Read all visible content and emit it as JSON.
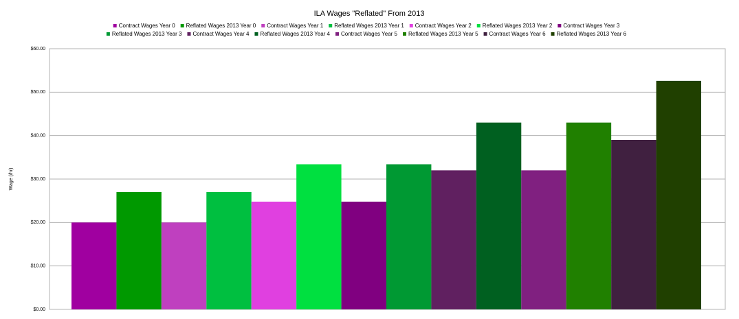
{
  "chart_data": {
    "type": "bar",
    "title": "ILA Wages \"Reflated\" From 2013",
    "y_label": "Wage (/hr)",
    "ylim": [
      0,
      60
    ],
    "yticks": [
      {
        "value": 0,
        "label": "$0.00"
      },
      {
        "value": 10,
        "label": "$10.00"
      },
      {
        "value": 20,
        "label": "$20.00"
      },
      {
        "value": 30,
        "label": "$30.00"
      },
      {
        "value": 40,
        "label": "$40.00"
      },
      {
        "value": 50,
        "label": "$50.00"
      },
      {
        "value": 60,
        "label": "$60.00"
      }
    ],
    "grid": true,
    "series": [
      {
        "name": "Contract Wages Year 0",
        "color": "#a000a0",
        "values": [
          20
        ]
      },
      {
        "name": "Reflated Wages 2013 Year 0",
        "color": "#009900",
        "values": [
          27
        ]
      },
      {
        "name": "Contract Wages Year 1",
        "color": "#bf40bf",
        "values": [
          20
        ]
      },
      {
        "name": "Reflated Wages 2013 Year 1",
        "color": "#00bf40",
        "values": [
          27
        ]
      },
      {
        "name": "Contract Wages Year 2",
        "color": "#e040e0",
        "values": [
          24.8
        ]
      },
      {
        "name": "Reflated Wages 2013 Year 2",
        "color": "#00e040",
        "values": [
          33.4
        ]
      },
      {
        "name": "Contract Wages Year 3",
        "color": "#800080",
        "values": [
          24.8
        ]
      },
      {
        "name": "Reflated Wages 2013 Year 3",
        "color": "#009933",
        "values": [
          33.4
        ]
      },
      {
        "name": "Contract Wages Year 4",
        "color": "#602060",
        "values": [
          32
        ]
      },
      {
        "name": "Reflated Wages 2013 Year 4",
        "color": "#006020",
        "values": [
          43
        ]
      },
      {
        "name": "Contract Wages Year 5",
        "color": "#802080",
        "values": [
          32
        ]
      },
      {
        "name": "Reflated Wages 2013 Year 5",
        "color": "#208000",
        "values": [
          43
        ]
      },
      {
        "name": "Contract Wages Year 6",
        "color": "#402040",
        "values": [
          39
        ]
      },
      {
        "name": "Reflated Wages 2013 Year 6",
        "color": "#204000",
        "values": [
          52.6
        ]
      }
    ]
  }
}
